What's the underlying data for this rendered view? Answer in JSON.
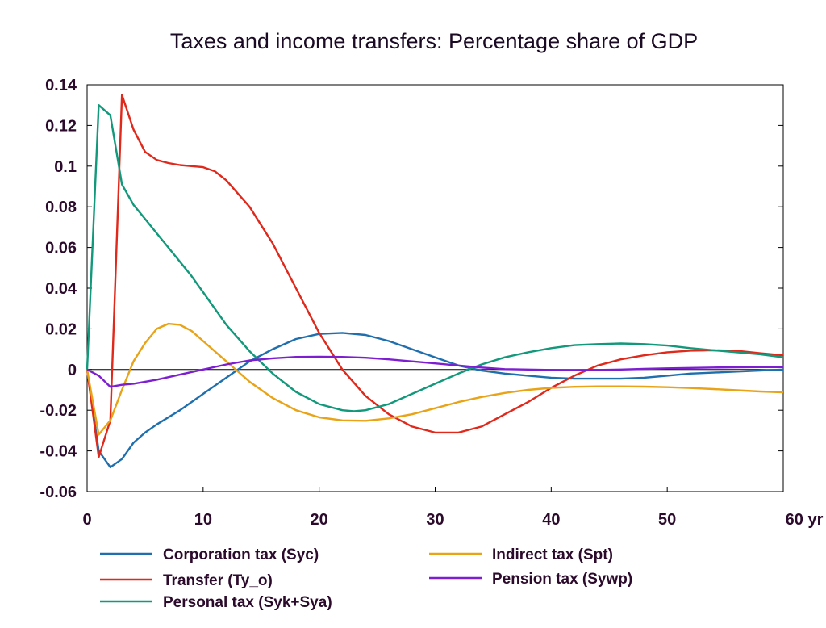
{
  "chart_data": {
    "type": "line",
    "title": "Taxes and income transfers: Percentage share of GDP",
    "xlabel": "",
    "ylabel": "",
    "x_tick_labels": [
      "0",
      "10",
      "20",
      "30",
      "40",
      "50",
      "60 yr"
    ],
    "y_tick_labels": [
      "0.14",
      "0.12",
      "0.1",
      "0.08",
      "0.06",
      "0.04",
      "0.02",
      "0",
      "-0.02",
      "-0.04",
      "-0.06"
    ],
    "xlim": [
      0,
      60
    ],
    "ylim": [
      -0.06,
      0.14
    ],
    "grid": false,
    "legend_position": "bottom",
    "series": [
      {
        "name": "Corporation tax (Syc)",
        "color": "#1f6fae",
        "points": [
          [
            0,
            0
          ],
          [
            1,
            -0.04
          ],
          [
            2,
            -0.048
          ],
          [
            3,
            -0.044
          ],
          [
            4,
            -0.036
          ],
          [
            5,
            -0.031
          ],
          [
            6,
            -0.027
          ],
          [
            8,
            -0.02
          ],
          [
            10,
            -0.012
          ],
          [
            12,
            -0.004
          ],
          [
            14,
            0.004
          ],
          [
            16,
            0.01
          ],
          [
            18,
            0.015
          ],
          [
            20,
            0.0175
          ],
          [
            22,
            0.018
          ],
          [
            24,
            0.017
          ],
          [
            26,
            0.014
          ],
          [
            28,
            0.01
          ],
          [
            30,
            0.006
          ],
          [
            32,
            0.002
          ],
          [
            34,
            -0.0005
          ],
          [
            36,
            -0.002
          ],
          [
            38,
            -0.003
          ],
          [
            40,
            -0.004
          ],
          [
            42,
            -0.0045
          ],
          [
            44,
            -0.0045
          ],
          [
            46,
            -0.0045
          ],
          [
            48,
            -0.004
          ],
          [
            50,
            -0.003
          ],
          [
            52,
            -0.002
          ],
          [
            54,
            -0.0015
          ],
          [
            56,
            -0.001
          ],
          [
            58,
            -0.0005
          ],
          [
            60,
            0
          ]
        ]
      },
      {
        "name": "Transfer (Ty_o)",
        "color": "#e0281b",
        "points": [
          [
            0,
            0
          ],
          [
            1,
            -0.043
          ],
          [
            2,
            -0.025
          ],
          [
            3,
            0.135
          ],
          [
            4,
            0.118
          ],
          [
            5,
            0.107
          ],
          [
            6,
            0.103
          ],
          [
            7,
            0.1015
          ],
          [
            8,
            0.1005
          ],
          [
            9,
            0.1
          ],
          [
            10,
            0.0995
          ],
          [
            11,
            0.0975
          ],
          [
            12,
            0.093
          ],
          [
            14,
            0.08
          ],
          [
            16,
            0.062
          ],
          [
            18,
            0.04
          ],
          [
            20,
            0.018
          ],
          [
            22,
            0.0
          ],
          [
            24,
            -0.013
          ],
          [
            26,
            -0.022
          ],
          [
            28,
            -0.028
          ],
          [
            30,
            -0.031
          ],
          [
            32,
            -0.031
          ],
          [
            34,
            -0.028
          ],
          [
            36,
            -0.022
          ],
          [
            38,
            -0.016
          ],
          [
            40,
            -0.009
          ],
          [
            42,
            -0.003
          ],
          [
            44,
            0.002
          ],
          [
            46,
            0.005
          ],
          [
            48,
            0.007
          ],
          [
            50,
            0.0085
          ],
          [
            52,
            0.0093
          ],
          [
            54,
            0.0095
          ],
          [
            56,
            0.0092
          ],
          [
            58,
            0.008
          ],
          [
            60,
            0.007
          ]
        ]
      },
      {
        "name": "Personal tax (Syk+Sya)",
        "color": "#12987a",
        "points": [
          [
            0,
            0
          ],
          [
            1,
            0.13
          ],
          [
            2,
            0.125
          ],
          [
            3,
            0.091
          ],
          [
            4,
            0.081
          ],
          [
            5,
            0.074
          ],
          [
            6,
            0.067
          ],
          [
            7,
            0.06
          ],
          [
            8,
            0.053
          ],
          [
            9,
            0.046
          ],
          [
            10,
            0.038
          ],
          [
            12,
            0.022
          ],
          [
            14,
            0.009
          ],
          [
            16,
            -0.002
          ],
          [
            18,
            -0.011
          ],
          [
            20,
            -0.017
          ],
          [
            22,
            -0.02
          ],
          [
            23,
            -0.0205
          ],
          [
            24,
            -0.02
          ],
          [
            26,
            -0.017
          ],
          [
            28,
            -0.012
          ],
          [
            30,
            -0.007
          ],
          [
            32,
            -0.002
          ],
          [
            34,
            0.0025
          ],
          [
            36,
            0.006
          ],
          [
            38,
            0.0085
          ],
          [
            40,
            0.0105
          ],
          [
            42,
            0.012
          ],
          [
            44,
            0.0125
          ],
          [
            46,
            0.0128
          ],
          [
            48,
            0.0125
          ],
          [
            50,
            0.0118
          ],
          [
            52,
            0.0105
          ],
          [
            54,
            0.0095
          ],
          [
            56,
            0.0085
          ],
          [
            58,
            0.0075
          ],
          [
            60,
            0.006
          ]
        ]
      },
      {
        "name": "Indirect tax (Spt)",
        "color": "#e8a317",
        "points": [
          [
            0,
            0
          ],
          [
            1,
            -0.032
          ],
          [
            2,
            -0.025
          ],
          [
            3,
            -0.01
          ],
          [
            4,
            0.004
          ],
          [
            5,
            0.013
          ],
          [
            6,
            0.02
          ],
          [
            7,
            0.0225
          ],
          [
            8,
            0.022
          ],
          [
            9,
            0.019
          ],
          [
            10,
            0.014
          ],
          [
            12,
            0.004
          ],
          [
            14,
            -0.006
          ],
          [
            16,
            -0.014
          ],
          [
            18,
            -0.02
          ],
          [
            20,
            -0.0235
          ],
          [
            22,
            -0.025
          ],
          [
            24,
            -0.0252
          ],
          [
            26,
            -0.024
          ],
          [
            28,
            -0.022
          ],
          [
            30,
            -0.019
          ],
          [
            32,
            -0.016
          ],
          [
            34,
            -0.0135
          ],
          [
            36,
            -0.0115
          ],
          [
            38,
            -0.01
          ],
          [
            40,
            -0.009
          ],
          [
            42,
            -0.0085
          ],
          [
            44,
            -0.0083
          ],
          [
            46,
            -0.0083
          ],
          [
            48,
            -0.0084
          ],
          [
            50,
            -0.0087
          ],
          [
            52,
            -0.0091
          ],
          [
            54,
            -0.0096
          ],
          [
            56,
            -0.0102
          ],
          [
            58,
            -0.0108
          ],
          [
            60,
            -0.0112
          ]
        ]
      },
      {
        "name": "Pension tax (Sywp)",
        "color": "#7d1fd0",
        "points": [
          [
            0,
            0
          ],
          [
            1,
            -0.003
          ],
          [
            2,
            -0.0085
          ],
          [
            3,
            -0.0075
          ],
          [
            4,
            -0.007
          ],
          [
            6,
            -0.005
          ],
          [
            8,
            -0.0025
          ],
          [
            10,
            0
          ],
          [
            12,
            0.0025
          ],
          [
            14,
            0.0045
          ],
          [
            16,
            0.0055
          ],
          [
            18,
            0.0062
          ],
          [
            20,
            0.0063
          ],
          [
            22,
            0.0062
          ],
          [
            24,
            0.0058
          ],
          [
            26,
            0.005
          ],
          [
            28,
            0.004
          ],
          [
            30,
            0.003
          ],
          [
            32,
            0.002
          ],
          [
            34,
            0.001
          ],
          [
            36,
            0.0002
          ],
          [
            38,
            0
          ],
          [
            40,
            -0.0002
          ],
          [
            42,
            -0.0003
          ],
          [
            44,
            -0.0002
          ],
          [
            46,
            0
          ],
          [
            48,
            0.0003
          ],
          [
            50,
            0.0006
          ],
          [
            52,
            0.0008
          ],
          [
            54,
            0.001
          ],
          [
            56,
            0.0011
          ],
          [
            58,
            0.0012
          ],
          [
            60,
            0.0012
          ]
        ]
      }
    ]
  }
}
